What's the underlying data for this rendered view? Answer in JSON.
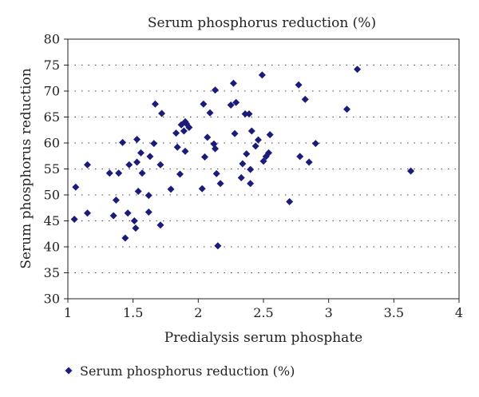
{
  "chart_data": {
    "type": "scatter",
    "title": "Serum phosphorus reduction (%)",
    "xlabel": "Predialysis serum phosphate",
    "ylabel": "Serum phosphorus reduction",
    "xlim": [
      1,
      4
    ],
    "ylim": [
      30,
      80
    ],
    "x_ticks": [
      "1",
      "1.5",
      "2",
      "2.5",
      "3",
      "3.5",
      "4"
    ],
    "y_ticks": [
      "30",
      "35",
      "40",
      "45",
      "50",
      "55",
      "60",
      "65",
      "70",
      "75",
      "80"
    ],
    "grid": "horizontal dotted",
    "legend_position": "bottom-left",
    "marker_color": "#1b1b7a",
    "marker_shape": "diamond",
    "series": [
      {
        "name": "Serum phosphorus reduction (%)",
        "points": [
          [
            1.05,
            45.3
          ],
          [
            1.06,
            51.5
          ],
          [
            1.15,
            55.8
          ],
          [
            1.15,
            46.5
          ],
          [
            1.32,
            54.2
          ],
          [
            1.35,
            46.0
          ],
          [
            1.37,
            49.0
          ],
          [
            1.39,
            54.2
          ],
          [
            1.42,
            60.1
          ],
          [
            1.44,
            41.7
          ],
          [
            1.46,
            46.5
          ],
          [
            1.47,
            55.8
          ],
          [
            1.51,
            45.0
          ],
          [
            1.52,
            43.6
          ],
          [
            1.53,
            60.7
          ],
          [
            1.53,
            56.3
          ],
          [
            1.54,
            50.7
          ],
          [
            1.56,
            58.1
          ],
          [
            1.57,
            54.2
          ],
          [
            1.62,
            46.7
          ],
          [
            1.62,
            49.9
          ],
          [
            1.63,
            57.4
          ],
          [
            1.66,
            59.9
          ],
          [
            1.67,
            67.5
          ],
          [
            1.71,
            44.2
          ],
          [
            1.71,
            55.8
          ],
          [
            1.72,
            65.7
          ],
          [
            1.79,
            51.1
          ],
          [
            1.83,
            61.9
          ],
          [
            1.84,
            59.2
          ],
          [
            1.86,
            54.0
          ],
          [
            1.87,
            63.5
          ],
          [
            1.89,
            62.3
          ],
          [
            1.9,
            64.1
          ],
          [
            1.9,
            58.4
          ],
          [
            1.91,
            63.7
          ],
          [
            1.93,
            63.0
          ],
          [
            2.03,
            51.2
          ],
          [
            2.04,
            67.5
          ],
          [
            2.05,
            57.3
          ],
          [
            2.07,
            61.1
          ],
          [
            2.09,
            65.8
          ],
          [
            2.12,
            59.8
          ],
          [
            2.13,
            58.9
          ],
          [
            2.13,
            70.2
          ],
          [
            2.14,
            54.1
          ],
          [
            2.15,
            40.2
          ],
          [
            2.17,
            52.2
          ],
          [
            2.25,
            67.3
          ],
          [
            2.27,
            71.5
          ],
          [
            2.28,
            61.8
          ],
          [
            2.29,
            67.8
          ],
          [
            2.33,
            53.3
          ],
          [
            2.34,
            56.0
          ],
          [
            2.36,
            65.6
          ],
          [
            2.37,
            57.9
          ],
          [
            2.39,
            65.6
          ],
          [
            2.4,
            52.2
          ],
          [
            2.4,
            54.9
          ],
          [
            2.41,
            62.3
          ],
          [
            2.44,
            59.4
          ],
          [
            2.46,
            60.6
          ],
          [
            2.49,
            73.1
          ],
          [
            2.5,
            56.5
          ],
          [
            2.52,
            57.4
          ],
          [
            2.54,
            58.1
          ],
          [
            2.55,
            61.6
          ],
          [
            2.7,
            48.7
          ],
          [
            2.77,
            71.2
          ],
          [
            2.78,
            57.4
          ],
          [
            2.82,
            68.4
          ],
          [
            2.85,
            56.3
          ],
          [
            2.9,
            59.9
          ],
          [
            3.14,
            66.5
          ],
          [
            3.22,
            74.2
          ],
          [
            3.63,
            54.6
          ]
        ]
      }
    ]
  }
}
